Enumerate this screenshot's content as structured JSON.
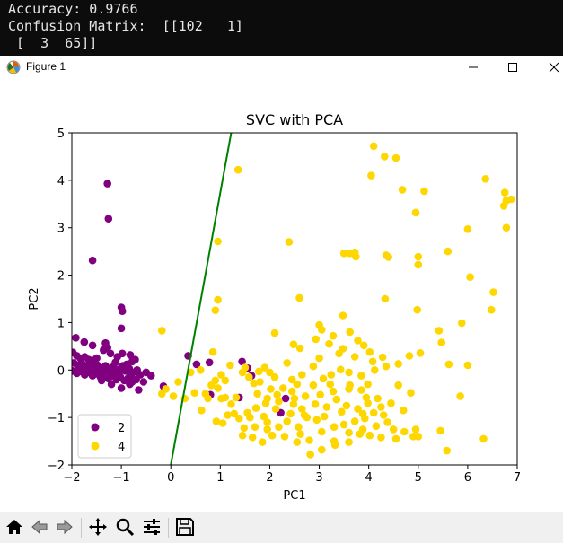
{
  "terminal": {
    "lines": [
      "Accuracy: 0.9766",
      "Confusion Matrix:  [[102   1]",
      " [  3  65]]"
    ]
  },
  "window": {
    "title": "Figure 1",
    "icons": [
      "matplotlib-figure-icon",
      "minimize-icon",
      "maximize-icon",
      "close-icon"
    ]
  },
  "toolbar": {
    "icons": [
      "home-icon",
      "back-arrow-icon",
      "forward-arrow-icon",
      "pan-icon",
      "zoom-icon",
      "configure-subplots-icon",
      "save-icon"
    ]
  },
  "colors": {
    "class_2": "#800080",
    "class_4": "#ffd700",
    "boundary": "#008000"
  },
  "chart_data": {
    "type": "scatter",
    "title": "SVC with PCA",
    "xlabel": "PC1",
    "ylabel": "PC2",
    "xlim": [
      -2,
      7
    ],
    "ylim": [
      -2,
      5
    ],
    "xticks": [
      "−2",
      "−1",
      "0",
      "1",
      "2",
      "3",
      "4",
      "5",
      "6",
      "7"
    ],
    "yticks": [
      "−2",
      "−1",
      "0",
      "1",
      "2",
      "3",
      "4",
      "5"
    ],
    "legend_position": "lower-left",
    "grid": false,
    "decision_boundary": {
      "x": [
        0.0,
        1.22
      ],
      "y": [
        -2.0,
        5.0
      ]
    },
    "series": [
      {
        "name": "2",
        "color": "#800080",
        "points": [
          [
            -1.28,
            3.93
          ],
          [
            -1.26,
            3.19
          ],
          [
            -1.58,
            2.31
          ],
          [
            -1.0,
            1.32
          ],
          [
            -0.98,
            1.24
          ],
          [
            -1.0,
            0.88
          ],
          [
            -1.32,
            0.57
          ],
          [
            -1.92,
            0.68
          ],
          [
            -1.75,
            0.59
          ],
          [
            -1.58,
            0.52
          ],
          [
            -1.28,
            0.47
          ],
          [
            -0.98,
            0.35
          ],
          [
            -0.82,
            0.32
          ],
          [
            -1.98,
            0.37
          ],
          [
            -1.9,
            0.3
          ],
          [
            -1.82,
            0.24
          ],
          [
            -1.74,
            0.28
          ],
          [
            -1.66,
            0.22
          ],
          [
            -1.58,
            0.2
          ],
          [
            -1.5,
            0.25
          ],
          [
            -1.96,
            0.15
          ],
          [
            -1.88,
            0.1
          ],
          [
            -1.8,
            0.14
          ],
          [
            -1.72,
            0.08
          ],
          [
            -1.64,
            0.12
          ],
          [
            -1.56,
            0.05
          ],
          [
            -1.48,
            0.1
          ],
          [
            -1.4,
            0.04
          ],
          [
            -1.32,
            0.09
          ],
          [
            -1.24,
            0.02
          ],
          [
            -1.16,
            0.07
          ],
          [
            -1.08,
            0.0
          ],
          [
            -1.0,
            0.05
          ],
          [
            -0.92,
            -0.02
          ],
          [
            -0.84,
            0.03
          ],
          [
            -0.76,
            -0.05
          ],
          [
            -0.68,
            0.0
          ],
          [
            -1.98,
            -0.02
          ],
          [
            -1.9,
            -0.07
          ],
          [
            -1.82,
            -0.03
          ],
          [
            -1.74,
            -0.1
          ],
          [
            -1.66,
            -0.05
          ],
          [
            -1.58,
            -0.12
          ],
          [
            -1.5,
            -0.08
          ],
          [
            -1.42,
            -0.15
          ],
          [
            -1.34,
            -0.1
          ],
          [
            -1.26,
            -0.18
          ],
          [
            -1.18,
            -0.12
          ],
          [
            -1.1,
            -0.2
          ],
          [
            -1.02,
            -0.15
          ],
          [
            -0.94,
            -0.22
          ],
          [
            -0.86,
            -0.17
          ],
          [
            -0.78,
            -0.25
          ],
          [
            -0.7,
            -0.2
          ],
          [
            -0.62,
            -0.1
          ],
          [
            -0.5,
            -0.05
          ],
          [
            -0.4,
            -0.12
          ],
          [
            -1.85,
            0.05
          ],
          [
            -1.77,
            -0.01
          ],
          [
            -1.69,
            0.02
          ],
          [
            -1.61,
            -0.04
          ],
          [
            -1.53,
            0.0
          ],
          [
            -1.45,
            -0.02
          ],
          [
            -1.37,
            0.03
          ],
          [
            -1.29,
            -0.06
          ],
          [
            -1.21,
            -0.03
          ],
          [
            -1.13,
            0.01
          ],
          [
            -1.05,
            -0.07
          ],
          [
            -0.97,
            0.09
          ],
          [
            -0.89,
            0.12
          ],
          [
            -0.81,
            -0.1
          ],
          [
            -1.2,
            -0.3
          ],
          [
            -1.0,
            -0.38
          ],
          [
            -0.83,
            -0.3
          ],
          [
            -0.65,
            -0.42
          ],
          [
            -1.4,
            -0.22
          ],
          [
            -0.55,
            -0.25
          ],
          [
            -0.78,
            0.18
          ],
          [
            -0.72,
            0.22
          ],
          [
            -1.12,
            0.16
          ],
          [
            -1.08,
            0.28
          ],
          [
            -1.36,
            0.42
          ],
          [
            -1.22,
            0.35
          ],
          [
            -0.15,
            -0.34
          ],
          [
            0.35,
            0.3
          ],
          [
            0.52,
            0.12
          ],
          [
            0.78,
            0.16
          ],
          [
            0.8,
            -0.52
          ],
          [
            1.38,
            -0.58
          ],
          [
            1.44,
            0.18
          ],
          [
            1.55,
            0.04
          ],
          [
            1.63,
            -0.12
          ],
          [
            2.22,
            -0.9
          ],
          [
            2.32,
            -0.6
          ]
        ]
      },
      {
        "name": "4",
        "color": "#ffd700",
        "points": [
          [
            1.36,
            4.22
          ],
          [
            4.1,
            4.72
          ],
          [
            4.32,
            4.5
          ],
          [
            4.55,
            4.47
          ],
          [
            4.68,
            3.8
          ],
          [
            4.05,
            4.1
          ],
          [
            5.12,
            3.77
          ],
          [
            4.95,
            3.32
          ],
          [
            6.36,
            4.03
          ],
          [
            6.75,
            3.74
          ],
          [
            6.78,
            3.57
          ],
          [
            6.88,
            3.6
          ],
          [
            6.73,
            3.46
          ],
          [
            6.78,
            3.0
          ],
          [
            6.0,
            2.97
          ],
          [
            3.5,
            2.46
          ],
          [
            3.62,
            2.46
          ],
          [
            3.72,
            2.48
          ],
          [
            3.74,
            2.39
          ],
          [
            4.35,
            2.42
          ],
          [
            4.4,
            2.38
          ],
          [
            5.0,
            2.39
          ],
          [
            5.0,
            2.22
          ],
          [
            5.6,
            2.5
          ],
          [
            6.05,
            1.96
          ],
          [
            2.39,
            2.7
          ],
          [
            0.95,
            2.71
          ],
          [
            0.95,
            1.48
          ],
          [
            0.9,
            1.26
          ],
          [
            2.6,
            1.52
          ],
          [
            4.33,
            1.5
          ],
          [
            4.98,
            1.27
          ],
          [
            6.52,
            1.64
          ],
          [
            6.48,
            1.27
          ],
          [
            5.88,
            0.99
          ],
          [
            3.48,
            1.15
          ],
          [
            3.0,
            0.95
          ],
          [
            -0.18,
            0.83
          ],
          [
            2.1,
            0.78
          ],
          [
            2.48,
            0.54
          ],
          [
            2.61,
            0.46
          ],
          [
            2.93,
            0.65
          ],
          [
            3.05,
            0.85
          ],
          [
            3.28,
            0.72
          ],
          [
            3.2,
            0.55
          ],
          [
            3.48,
            0.45
          ],
          [
            3.62,
            0.8
          ],
          [
            3.78,
            0.62
          ],
          [
            3.9,
            0.52
          ],
          [
            4.02,
            0.38
          ],
          [
            4.28,
            0.27
          ],
          [
            4.08,
            0.18
          ],
          [
            4.35,
            0.08
          ],
          [
            4.12,
            0.0
          ],
          [
            4.6,
            0.13
          ],
          [
            4.82,
            0.3
          ],
          [
            5.04,
            0.36
          ],
          [
            5.42,
            0.83
          ],
          [
            5.47,
            0.58
          ],
          [
            5.62,
            0.12
          ],
          [
            6.0,
            0.1
          ],
          [
            0.6,
            0.0
          ],
          [
            0.85,
            0.38
          ],
          [
            0.9,
            -0.22
          ],
          [
            1.02,
            -0.1
          ],
          [
            1.2,
            0.1
          ],
          [
            1.45,
            -0.05
          ],
          [
            1.58,
            -0.15
          ],
          [
            1.68,
            -0.28
          ],
          [
            1.75,
            -0.5
          ],
          [
            1.78,
            -0.03
          ],
          [
            1.9,
            0.05
          ],
          [
            2.1,
            -0.15
          ],
          [
            2.02,
            -0.4
          ],
          [
            2.27,
            -0.38
          ],
          [
            2.45,
            -0.2
          ],
          [
            2.65,
            -0.1
          ],
          [
            2.88,
            0.08
          ],
          [
            3.08,
            -0.18
          ],
          [
            3.24,
            -0.1
          ],
          [
            3.43,
            0.01
          ],
          [
            3.6,
            -0.05
          ],
          [
            3.85,
            -0.12
          ],
          [
            3.98,
            -0.3
          ],
          [
            3.6,
            -0.4
          ],
          [
            3.28,
            -0.45
          ],
          [
            3.02,
            -0.52
          ],
          [
            2.72,
            -0.55
          ],
          [
            2.5,
            -0.6
          ],
          [
            2.18,
            -0.66
          ],
          [
            1.92,
            -0.7
          ],
          [
            1.72,
            -0.8
          ],
          [
            1.55,
            -0.9
          ],
          [
            1.38,
            -1.02
          ],
          [
            1.15,
            -0.95
          ],
          [
            0.92,
            -1.08
          ],
          [
            0.62,
            -0.85
          ],
          [
            0.75,
            -0.6
          ],
          [
            0.48,
            -0.48
          ],
          [
            0.28,
            -0.6
          ],
          [
            0.05,
            -0.55
          ],
          [
            -0.1,
            -0.4
          ],
          [
            1.1,
            -0.58
          ],
          [
            1.22,
            -0.72
          ],
          [
            1.28,
            -0.92
          ],
          [
            1.05,
            -1.12
          ],
          [
            1.48,
            -1.22
          ],
          [
            1.7,
            -1.2
          ],
          [
            1.95,
            -1.1
          ],
          [
            2.18,
            -1.2
          ],
          [
            2.35,
            -1.08
          ],
          [
            2.58,
            -1.2
          ],
          [
            2.75,
            -1.0
          ],
          [
            2.95,
            -1.05
          ],
          [
            3.1,
            -0.98
          ],
          [
            3.3,
            -1.2
          ],
          [
            3.5,
            -1.15
          ],
          [
            3.72,
            -1.08
          ],
          [
            3.92,
            -1.02
          ],
          [
            4.15,
            -1.18
          ],
          [
            4.3,
            -0.95
          ],
          [
            4.5,
            -1.25
          ],
          [
            4.72,
            -1.3
          ],
          [
            4.9,
            -1.4
          ],
          [
            4.95,
            -1.25
          ],
          [
            5.0,
            -1.4
          ],
          [
            5.45,
            -1.28
          ],
          [
            5.58,
            -1.7
          ],
          [
            5.85,
            -0.55
          ],
          [
            6.32,
            -1.45
          ],
          [
            4.45,
            -0.7
          ],
          [
            4.6,
            -0.32
          ],
          [
            4.18,
            -0.6
          ],
          [
            3.98,
            -0.7
          ],
          [
            3.78,
            -0.82
          ],
          [
            3.55,
            -0.75
          ],
          [
            3.35,
            -0.62
          ],
          [
            3.15,
            -0.78
          ],
          [
            2.92,
            -0.72
          ],
          [
            2.65,
            -0.82
          ],
          [
            2.42,
            -0.92
          ],
          [
            2.12,
            -0.82
          ],
          [
            1.88,
            -0.98
          ],
          [
            1.6,
            -1.0
          ],
          [
            1.32,
            -0.58
          ],
          [
            1.1,
            -0.22
          ],
          [
            1.02,
            -0.6
          ],
          [
            0.82,
            -0.32
          ],
          [
            2.3,
            -1.4
          ],
          [
            2.55,
            -1.52
          ],
          [
            2.8,
            -1.48
          ],
          [
            3.05,
            -1.68
          ],
          [
            3.3,
            -1.5
          ],
          [
            3.6,
            -1.52
          ],
          [
            3.82,
            -1.35
          ],
          [
            4.02,
            -1.38
          ],
          [
            4.25,
            -1.42
          ],
          [
            4.55,
            -1.45
          ],
          [
            1.85,
            -1.52
          ],
          [
            2.05,
            -1.38
          ],
          [
            1.65,
            -1.42
          ],
          [
            1.45,
            -1.38
          ],
          [
            2.82,
            -1.78
          ],
          [
            3.32,
            -1.58
          ],
          [
            3.88,
            -1.25
          ],
          [
            0.95,
            -0.38
          ],
          [
            1.8,
            -0.25
          ],
          [
            2.55,
            -0.3
          ],
          [
            3.72,
            0.28
          ],
          [
            2.15,
            -0.52
          ],
          [
            3.45,
            -0.88
          ],
          [
            2.48,
            -0.72
          ],
          [
            4.7,
            -0.85
          ],
          [
            4.85,
            -0.48
          ],
          [
            4.1,
            -0.9
          ],
          [
            4.38,
            -1.1
          ],
          [
            3.05,
            -1.3
          ],
          [
            3.6,
            -1.32
          ],
          [
            2.62,
            -1.35
          ],
          [
            1.95,
            -1.25
          ],
          [
            2.88,
            -0.32
          ],
          [
            3.22,
            -0.3
          ],
          [
            3.85,
            -0.42
          ],
          [
            2.0,
            -0.05
          ],
          [
            2.35,
            0.15
          ],
          [
            3.0,
            0.25
          ],
          [
            3.4,
            0.35
          ],
          [
            1.5,
            0.05
          ],
          [
            0.4,
            -0.05
          ],
          [
            0.15,
            -0.25
          ],
          [
            -0.18,
            -0.5
          ],
          [
            0.7,
            -0.5
          ],
          [
            3.62,
            -0.32
          ],
          [
            3.95,
            -0.58
          ],
          [
            4.25,
            -0.78
          ],
          [
            2.45,
            -0.45
          ],
          [
            2.7,
            -0.95
          ],
          [
            3.88,
            -0.92
          ],
          [
            1.95,
            -0.6
          ]
        ]
      }
    ]
  }
}
